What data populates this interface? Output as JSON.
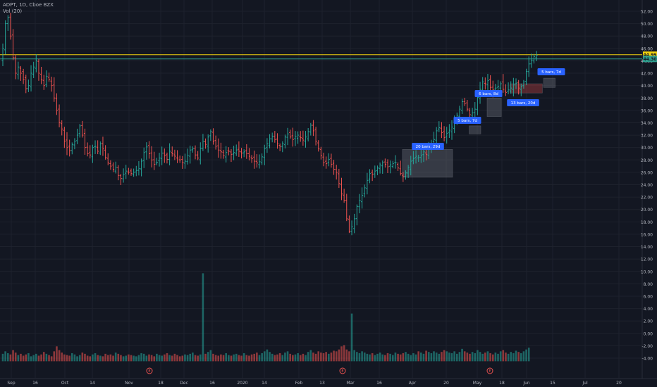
{
  "header": {
    "symbol_line": "ADPT, 1D, Cboe BZX",
    "volume_label": "Vol (20)"
  },
  "chart_data": {
    "type": "ohlc",
    "title": "ADPT, 1D, Cboe BZX",
    "price_axis": {
      "ylim": [
        -4.5,
        54
      ],
      "ticks": [
        52,
        50,
        48,
        46,
        44,
        42,
        40,
        38,
        36,
        34,
        32,
        30,
        28,
        26,
        24,
        22,
        20,
        18,
        16,
        14,
        12,
        10,
        8,
        6,
        4,
        2,
        0,
        -2,
        -4
      ],
      "tick_labels": [
        "52.00",
        "50.00",
        "48.00",
        "46.00",
        "44.00",
        "42.00",
        "40.00",
        "38.00",
        "36.00",
        "34.00",
        "32.00",
        "30.00",
        "28.00",
        "26.00",
        "24.00",
        "22.00",
        "20.00",
        "18.00",
        "16.00",
        "14.00",
        "12.00",
        "10.00",
        "8.00",
        "6.00",
        "4.00",
        "2.00",
        "0.00",
        "-2.00",
        "-4.00"
      ]
    },
    "time_axis": {
      "labels": [
        "Sep",
        "16",
        "Oct",
        "14",
        "Nov",
        "18",
        "Dec",
        "16",
        "2020",
        "14",
        "Feb",
        "13",
        "Mar",
        "16",
        "Apr",
        "20",
        "May",
        "18",
        "Jun",
        "15",
        "Jul",
        "20"
      ]
    },
    "horizontal_lines": [
      {
        "price": 44.99,
        "label": "44.99",
        "color": "#f2d20e"
      },
      {
        "price": 44.3,
        "label": "44.30",
        "color": "#2e9e8e"
      }
    ],
    "range_boxes": [
      {
        "label": "20 bars, 29d",
        "from": 156,
        "to": 175,
        "low": 25.2,
        "high": 29.7,
        "color": "#787b86"
      },
      {
        "label": "5 bars, 7d",
        "from": 182,
        "to": 186,
        "low": 32.2,
        "high": 33.5,
        "color": "#787b86"
      },
      {
        "label": "6 bars, 8d",
        "from": 189,
        "to": 194,
        "low": 35.0,
        "high": 38.0,
        "color": "#787b86"
      },
      {
        "label": "13 bars, 20d",
        "from": 198,
        "to": 210,
        "low": 38.8,
        "high": 40.3,
        "color": "#d04545"
      },
      {
        "label": "5 bars, 7d",
        "from": 211,
        "to": 215,
        "low": 39.7,
        "high": 41.2,
        "color": "#787b86"
      }
    ],
    "events": [
      {
        "date": "Nov",
        "label": "E"
      },
      {
        "date": "Mar",
        "label": "E"
      },
      {
        "date": "May",
        "label": "E"
      }
    ],
    "price_series": {
      "name": "ADPT",
      "up_color": "#26a69a",
      "down_color": "#ef5350",
      "close": [
        46,
        50,
        51,
        48,
        44.5,
        42,
        43,
        42,
        41,
        39.5,
        40,
        42,
        43,
        44,
        42,
        41,
        40,
        41.5,
        41,
        40,
        38,
        36,
        34,
        33,
        31,
        30,
        29.5,
        30.5,
        31,
        32,
        33.5,
        32,
        30,
        29,
        28.8,
        30,
        30.2,
        29.4,
        30.6,
        29.8,
        28.4,
        27.5,
        27,
        26.5,
        26.8,
        25.5,
        25,
        25.6,
        26.2,
        26,
        25.8,
        26,
        26.3,
        26.6,
        27.8,
        29.2,
        30.1,
        29,
        28,
        27.3,
        27.6,
        28.3,
        29.1,
        28.7,
        28.1,
        29.4,
        29,
        28.6,
        28.3,
        28,
        27.6,
        27.8,
        28.7,
        29.6,
        29.8,
        28.8,
        28.3,
        29.8,
        31,
        30.5,
        31.7,
        32.6,
        31,
        30.2,
        29.6,
        29.3,
        28.7,
        29.2,
        29.4,
        28.9,
        29.2,
        29.6,
        29.4,
        29.1,
        29.3,
        29,
        28.6,
        28.2,
        27.8,
        27.5,
        27.7,
        28.5,
        29.8,
        30.6,
        31.4,
        31.8,
        31.3,
        30.6,
        30.2,
        30.7,
        31.7,
        32.2,
        31.7,
        31.3,
        31.8,
        32,
        31.6,
        31.2,
        31.7,
        32.6,
        33.6,
        32.7,
        31,
        29.8,
        28.7,
        27.6,
        27.4,
        28.1,
        27.3,
        26.5,
        26,
        24.2,
        22.5,
        21.5,
        18.5,
        16.5,
        17.2,
        18.5,
        20.5,
        21.5,
        22.3,
        23.5,
        24.7,
        25.8,
        25.7,
        26.2,
        26.7,
        27.2,
        27.6,
        27.3,
        26.9,
        27.2,
        27.4,
        27.6,
        26.7,
        25.8,
        25.3,
        25.9,
        26.8,
        27.8,
        28.2,
        28.6,
        28.4,
        28.7,
        29.3,
        28.9,
        29.8,
        30.7,
        31.3,
        32.7,
        33.2,
        32.4,
        31.6,
        32.3,
        32.8,
        33.3,
        34.4,
        35.2,
        36.2,
        37.4,
        37.1,
        36.2,
        35.3,
        35.6,
        36.2,
        38.1,
        39.4,
        40.6,
        40.3,
        40.8,
        39.7,
        39.3,
        39.6,
        39.9,
        40.3,
        39.4,
        38.9,
        39.3,
        39.6,
        40.1,
        40.4,
        39.6,
        39.9,
        40.6,
        42.3,
        43.5,
        44.1,
        44.7,
        44.9
      ]
    },
    "volume_series": {
      "name": "Vol (20)",
      "axis_ticks": [
        10,
        8,
        6,
        4,
        2,
        0,
        -2,
        -4
      ],
      "values": [
        1.2,
        1.6,
        1.3,
        1.1,
        1.8,
        1.4,
        1.0,
        1.2,
        0.9,
        1.1,
        1.3,
        0.8,
        1.0,
        1.2,
        0.9,
        1.1,
        1.5,
        1.2,
        1.0,
        0.8,
        1.6,
        2.4,
        1.8,
        1.4,
        1.1,
        1.0,
        0.9,
        1.3,
        1.1,
        0.8,
        1.0,
        1.4,
        1.2,
        0.9,
        0.8,
        1.1,
        1.3,
        1.0,
        0.9,
        0.8,
        1.2,
        1.0,
        1.1,
        0.9,
        1.4,
        1.2,
        1.0,
        0.8,
        0.9,
        1.1,
        1.0,
        0.9,
        0.8,
        1.0,
        1.3,
        1.2,
        0.9,
        1.1,
        1.0,
        0.8,
        1.2,
        1.0,
        0.9,
        1.1,
        1.3,
        1.0,
        0.9,
        1.2,
        1.0,
        0.8,
        0.9,
        1.1,
        1.0,
        1.2,
        1.4,
        1.0,
        0.9,
        1.1,
        1.6,
        1.2,
        1.5,
        1.8,
        1.2,
        1.0,
        0.9,
        1.1,
        1.0,
        1.3,
        1.0,
        0.9,
        1.1,
        1.2,
        1.0,
        0.9,
        1.3,
        1.0,
        0.9,
        1.1,
        1.2,
        1.4,
        1.0,
        1.3,
        1.6,
        1.9,
        1.5,
        1.2,
        1.0,
        1.1,
        1.3,
        1.0,
        1.4,
        1.6,
        1.2,
        1.0,
        1.1,
        1.3,
        1.0,
        1.2,
        1.0,
        1.5,
        1.8,
        1.4,
        1.2,
        1.6,
        1.4,
        1.3,
        1.5,
        1.2,
        1.4,
        1.7,
        1.6,
        1.9,
        2.4,
        2.6,
        1.9,
        1.6,
        1.4,
        1.8,
        1.5,
        1.3,
        1.6,
        1.4,
        1.2,
        1.1,
        1.3,
        1.0,
        1.2,
        1.4,
        1.1,
        1.0,
        1.3,
        1.2,
        1.0,
        1.4,
        1.2,
        1.1,
        1.3,
        1.5,
        1.2,
        1.0,
        1.3,
        1.1,
        1.6,
        1.4,
        1.2,
        1.7,
        1.5,
        1.3,
        1.6,
        1.4,
        1.2,
        1.5,
        1.8,
        1.6,
        1.4,
        1.3,
        1.6,
        1.2,
        1.5,
        2.0,
        1.6,
        1.4,
        1.2,
        1.5,
        1.3,
        1.8,
        1.5,
        1.2,
        1.4,
        1.6,
        1.3,
        1.1,
        1.4,
        1.2,
        1.6,
        1.8,
        1.4,
        1.2,
        1.5,
        1.3,
        1.7,
        1.5,
        1.3,
        1.6,
        1.9,
        2.2
      ],
      "spikes": {
        "78": 9.7,
        "136": 3.2
      }
    }
  }
}
